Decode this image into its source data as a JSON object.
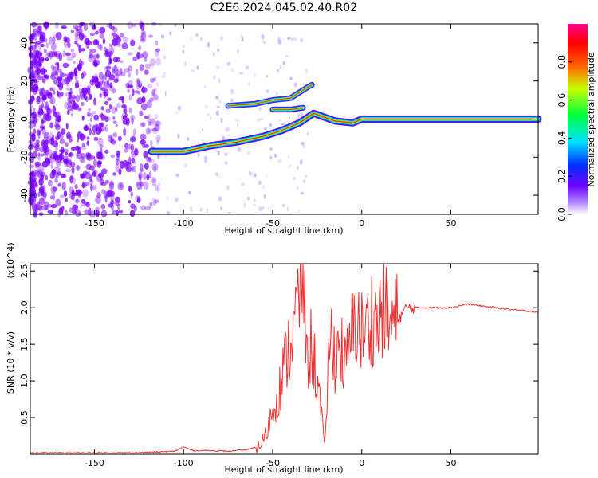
{
  "title": "C2E6.2024.045.02.40.R02",
  "colors": {
    "snr_line": "#f03030",
    "spectral_base": "#7a00ff",
    "frame": "#000000"
  },
  "chart_data": [
    {
      "type": "heatmap",
      "xlabel": "Height of straight line (km)",
      "ylabel": "Frequency (Hz)",
      "xlim": [
        -186,
        99
      ],
      "ylim": [
        -50,
        50
      ],
      "xticks": [
        -150,
        -100,
        -50,
        0,
        50
      ],
      "xtick_labels": [
        "-150",
        "-100",
        "-50",
        "0",
        "50"
      ],
      "yticks": [
        -40,
        -20,
        0,
        20,
        40
      ],
      "ytick_labels": [
        "-40",
        "-20",
        "0",
        "20",
        "40"
      ],
      "colorbar": {
        "label": "Normalized spectral amplitude",
        "range": [
          0.0,
          1.0
        ],
        "ticks": [
          0.0,
          0.2,
          0.4,
          0.6,
          0.8
        ],
        "tick_labels": [
          "0.0",
          "0.2",
          "0.4",
          "0.6",
          "0.8"
        ],
        "colormap": "rainbow"
      },
      "ridges": [
        {
          "name": "main",
          "points": [
            [
              -118,
              -17
            ],
            [
              -100,
              -17
            ],
            [
              -85,
              -14
            ],
            [
              -70,
              -12
            ],
            [
              -55,
              -9
            ],
            [
              -45,
              -6
            ],
            [
              -35,
              -2
            ],
            [
              -27,
              3
            ],
            [
              -15,
              -1
            ],
            [
              -5,
              -2
            ],
            [
              0,
              0
            ],
            [
              15,
              0
            ],
            [
              30,
              0
            ],
            [
              60,
              0
            ],
            [
              99,
              0
            ]
          ]
        },
        {
          "name": "upper",
          "points": [
            [
              -75,
              7
            ],
            [
              -60,
              8
            ],
            [
              -50,
              10
            ],
            [
              -40,
              11
            ],
            [
              -30,
              17
            ],
            [
              -28,
              18
            ]
          ]
        },
        {
          "name": "middle",
          "points": [
            [
              -50,
              5
            ],
            [
              -40,
              5
            ],
            [
              -33,
              6
            ]
          ]
        }
      ]
    },
    {
      "type": "line",
      "xlabel": "Height of straight line (km)",
      "ylabel": "SNR (10 * v/v)",
      "yscale_label": "(x10^4)",
      "xlim": [
        -186,
        99
      ],
      "ylim": [
        0,
        2.6
      ],
      "xticks": [
        -150,
        -100,
        -50,
        0,
        50
      ],
      "xtick_labels": [
        "-150",
        "-100",
        "-50",
        "0",
        "50"
      ],
      "yticks": [
        0.5,
        1.0,
        1.5,
        2.0,
        2.5
      ],
      "ytick_labels": [
        "0.5",
        "1.0",
        "1.5",
        "2.0",
        "2.5"
      ],
      "series": [
        {
          "x": [
            -186,
            -170,
            -150,
            -130,
            -115,
            -105,
            -100,
            -95,
            -85,
            -75,
            -65,
            -58,
            -54,
            -50,
            -46,
            -42,
            -38,
            -35,
            -33,
            -31,
            -29,
            -26,
            -23,
            -21,
            -19,
            -17,
            -15,
            -12,
            -9,
            -6,
            -3,
            0,
            3,
            6,
            9,
            12,
            15,
            18,
            21,
            25,
            30,
            40,
            50,
            60,
            65,
            75,
            85,
            95,
            99
          ],
          "y": [
            0.02,
            0.02,
            0.02,
            0.02,
            0.03,
            0.04,
            0.1,
            0.05,
            0.05,
            0.04,
            0.06,
            0.1,
            0.25,
            0.6,
            0.9,
            1.35,
            1.7,
            2.2,
            2.65,
            1.2,
            1.5,
            1.2,
            0.6,
            0.08,
            1.1,
            1.6,
            1.35,
            1.5,
            1.15,
            1.6,
            1.85,
            1.65,
            1.7,
            1.9,
            1.75,
            2.1,
            1.75,
            1.8,
            1.85,
            2.0,
            2.0,
            2.0,
            2.0,
            2.05,
            2.03,
            2.0,
            1.97,
            1.95,
            1.93
          ]
        }
      ]
    }
  ]
}
